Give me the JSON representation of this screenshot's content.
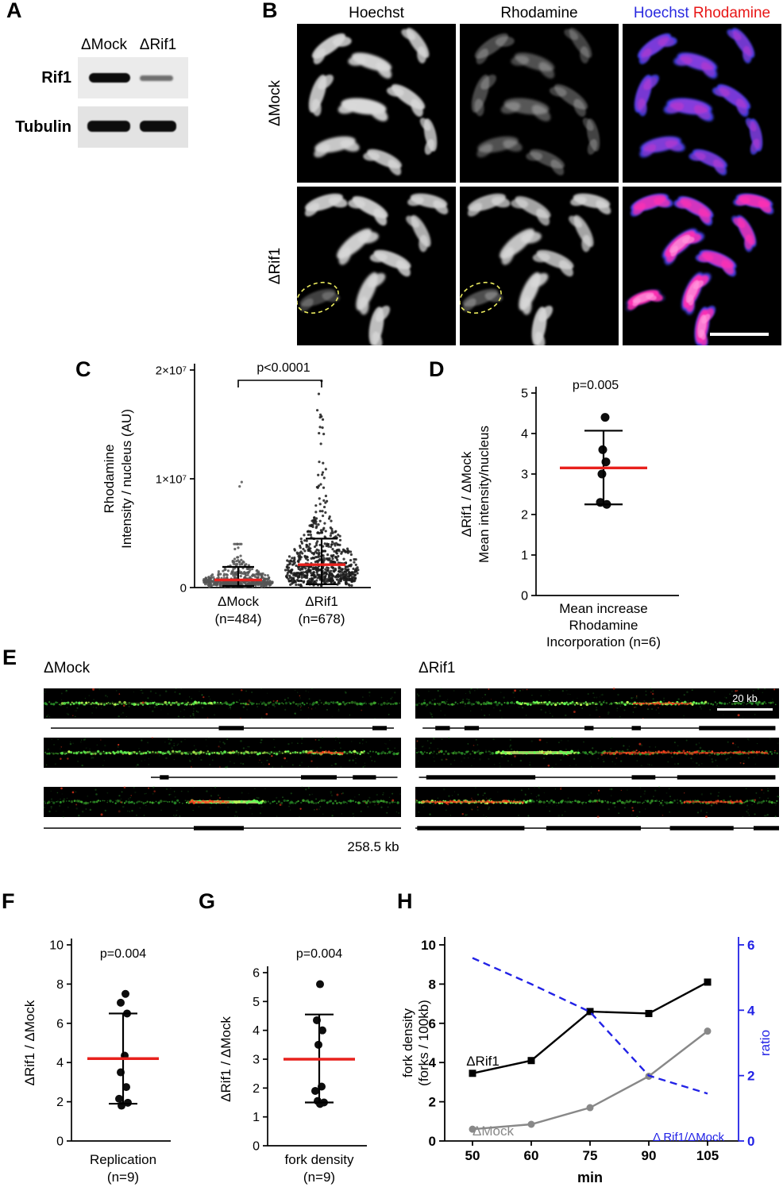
{
  "panelA": {
    "letter": "A",
    "col_labels": [
      "ΔMock",
      "ΔRif1"
    ],
    "rows": [
      {
        "label": "Rif1"
      },
      {
        "label": "Tubulin"
      }
    ]
  },
  "panelB": {
    "letter": "B",
    "col_headers": [
      "Hoechst",
      "Rhodamine"
    ],
    "merge_header": [
      {
        "text": "Hoechst",
        "color": "#2a2ae0"
      },
      {
        "text": "Rhodamine",
        "color": "#e81717"
      }
    ],
    "row_labels": [
      "ΔMock",
      "ΔRif1"
    ]
  },
  "panelE": {
    "letter": "E",
    "group_labels": [
      "ΔMock",
      "ΔRif1"
    ],
    "scale_label": "20 kb",
    "length_label": "258.5 kb"
  },
  "chart_data": [
    {
      "id": "C",
      "type": "scatter",
      "panel_letter": "C",
      "ylabel_lines": [
        "Rhodamine",
        "Intensity / nucleus (AU)"
      ],
      "ylim": [
        0,
        20000000
      ],
      "yticks": [
        {
          "v": 0,
          "label": "0"
        },
        {
          "v": 10000000,
          "label": "1×10⁷"
        },
        {
          "v": 20000000,
          "label": "2×10⁷"
        }
      ],
      "p_label": "p<0.0001",
      "groups": [
        {
          "label_lines": [
            "ΔMock",
            "(n=484)"
          ],
          "n": 484,
          "mean_line": 700000,
          "whisker_low": 150000,
          "whisker_high": 1900000,
          "spread": {
            "mode": 600000,
            "sigma": 0.75,
            "max": 4000000,
            "tail_frac": 0,
            "tail_min": 0,
            "outliers": [
              9700000,
              9300000
            ]
          }
        },
        {
          "label_lines": [
            "ΔRif1",
            "(n=678)"
          ],
          "n": 678,
          "mean_line": 2100000,
          "whisker_low": 300000,
          "whisker_high": 4500000,
          "spread": {
            "mode": 1700000,
            "sigma": 0.8,
            "max": 19000000,
            "tail_frac": 0.05,
            "tail_min": 5000000,
            "outliers": [
              19000000,
              17800000
            ]
          }
        }
      ]
    },
    {
      "id": "D",
      "type": "scatter",
      "panel_letter": "D",
      "ylabel_lines": [
        "ΔRif1 / ΔMock",
        "Mean intensity/nucleus"
      ],
      "xlabel_lines": [
        "Mean increase",
        "Rhodamine",
        "Incorporation (n=6)"
      ],
      "ylim": [
        0,
        5
      ],
      "ytick_step": 1,
      "p_label": "p=0.005",
      "points": [
        4.4,
        3.6,
        3.3,
        3.0,
        2.3,
        2.25
      ],
      "mean_line": 3.15,
      "whisker_low": 2.25,
      "whisker_high": 4.07
    },
    {
      "id": "F",
      "type": "scatter",
      "panel_letter": "F",
      "ylabel_lines": [
        "ΔRif1 / ΔMock"
      ],
      "xlabel_lines": [
        "Replication",
        "(n=9)"
      ],
      "ylim": [
        0,
        10
      ],
      "ytick_step": 2,
      "p_label": "p=0.004",
      "points": [
        7.5,
        7.05,
        6.5,
        4.35,
        3.5,
        2.75,
        2.15,
        1.95,
        1.8
      ],
      "mean_line": 4.2,
      "whisker_low": 1.9,
      "whisker_high": 6.5
    },
    {
      "id": "G",
      "type": "scatter",
      "panel_letter": "G",
      "ylabel_lines": [
        "ΔRif1 / ΔMock"
      ],
      "xlabel_lines": [
        "fork density",
        "(n=9)"
      ],
      "ylim": [
        0,
        6
      ],
      "ytick_step": 1,
      "p_label": "p=0.004",
      "points": [
        5.6,
        4.35,
        4.0,
        3.5,
        2.05,
        1.9,
        1.55,
        1.5,
        1.45
      ],
      "mean_line": 3.0,
      "whisker_low": 1.5,
      "whisker_high": 4.55
    },
    {
      "id": "H",
      "type": "line",
      "panel_letter": "H",
      "x": [
        50,
        60,
        75,
        90,
        105
      ],
      "xlabel": "min",
      "ylabel_left_lines": [
        "fork density",
        "(forks / 100kb)"
      ],
      "ylabel_right": "ratio",
      "ylim_left": [
        0,
        10
      ],
      "yticks_left": [
        0,
        2,
        4,
        6,
        8,
        10
      ],
      "ylim_right": [
        0,
        6
      ],
      "yticks_right": [
        0,
        2,
        4,
        6
      ],
      "right_color": "#2222e6",
      "series": [
        {
          "name": "ΔRif1",
          "axis": "left",
          "color": "#000000",
          "marker": "square",
          "dashed": false,
          "values": [
            3.45,
            4.1,
            6.6,
            6.5,
            8.1
          ]
        },
        {
          "name": "ΔMock",
          "axis": "left",
          "color": "#888888",
          "marker": "circle",
          "dashed": false,
          "values": [
            0.6,
            0.85,
            1.7,
            3.3,
            5.6
          ]
        },
        {
          "name": "Δ Rif1/ΔMock",
          "axis": "right",
          "color": "#2222e6",
          "marker": "none",
          "dashed": true,
          "values": [
            5.6,
            4.8,
            3.95,
            2.0,
            1.45
          ]
        }
      ]
    }
  ]
}
